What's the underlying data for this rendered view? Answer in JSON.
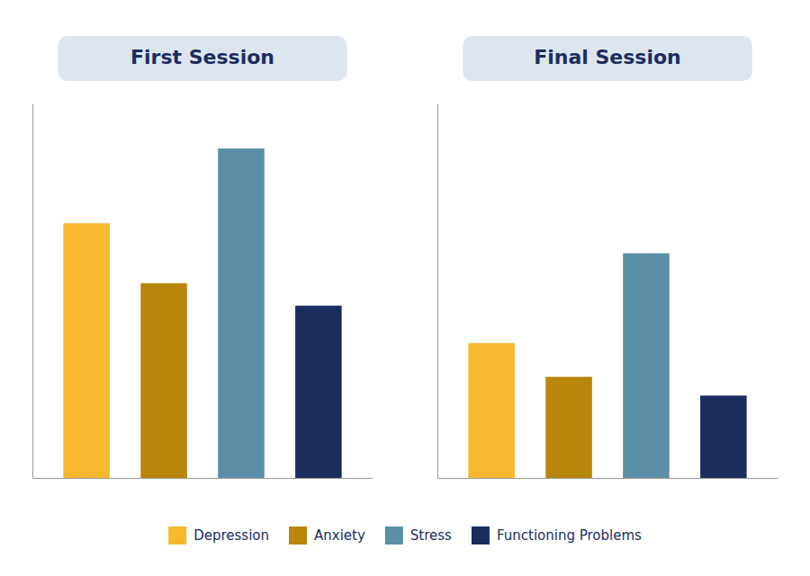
{
  "chart_data": [
    {
      "type": "bar",
      "title": "First Session",
      "categories": [
        "Depression",
        "Anxiety",
        "Stress",
        "Functioning Problems"
      ],
      "values": [
        0.68,
        0.52,
        0.88,
        0.46
      ],
      "colors": [
        "#F5B82E",
        "#B8860B",
        "#5B8FA8",
        "#1B2D5E"
      ],
      "ylim": [
        0,
        1.0
      ],
      "tick_labels": false,
      "grid": false,
      "legend": "bottom"
    },
    {
      "type": "bar",
      "title": "Final Session",
      "categories": [
        "Depression",
        "Anxiety",
        "Stress",
        "Functioning Problems"
      ],
      "values": [
        0.36,
        0.27,
        0.6,
        0.22
      ],
      "colors": [
        "#F5B82E",
        "#B8860B",
        "#5B8FA8",
        "#1B2D5E"
      ],
      "ylim": [
        0,
        1.0
      ],
      "tick_labels": false,
      "grid": false
    }
  ]
}
